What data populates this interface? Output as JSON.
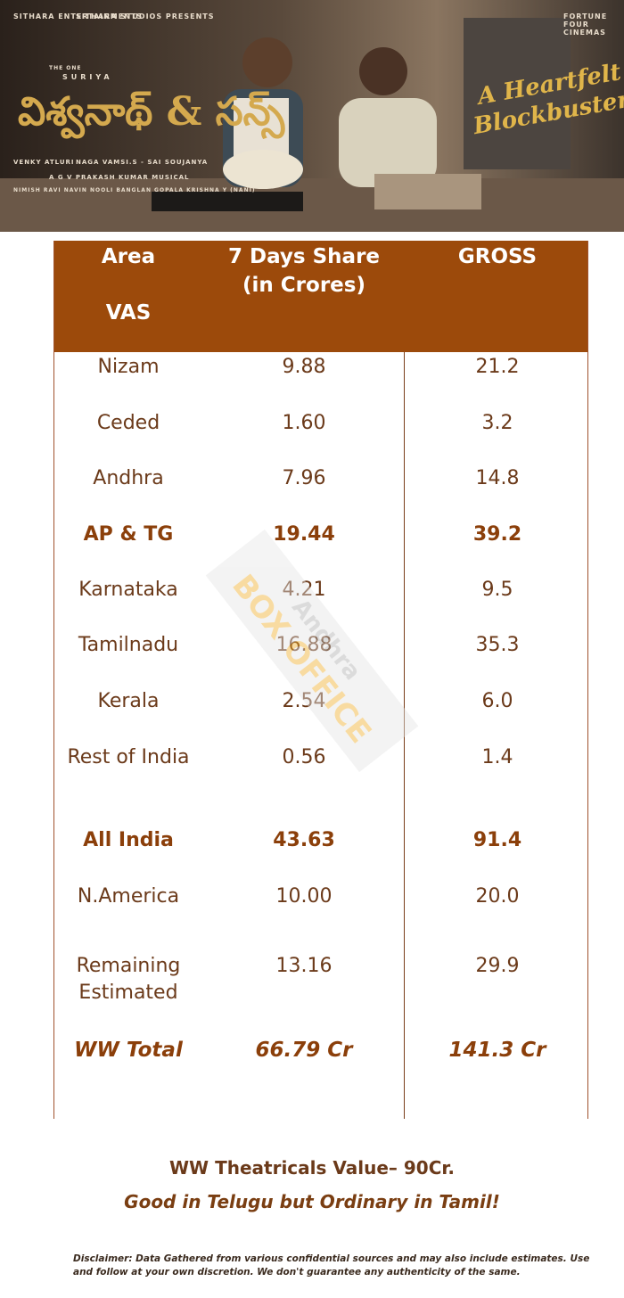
{
  "banner": {
    "logo_left": "SITHARA ENTERTAINMENTS",
    "logo_mid": "SITHARA STUDIOS PRESENTS",
    "logo_right": "FORTUNE FOUR CINEMAS",
    "star_prefix": "THE ONE",
    "star": "SURIYA",
    "title": "విశ్వనాథ్ & సన్స్",
    "credit_1": "VENKY ATLURI",
    "credit_2": "NAGA VAMSI.S - SAI SOUJANYA",
    "credit_3": "A G V PRAKASH KUMAR MUSICAL",
    "credit_4": "NIMISH RAVI   NAVIN NOOLI   BANGLAN   GOPALA KRISHNA Y (NANI)",
    "tagline_1": "A Heartfelt",
    "tagline_2": "Blockbuster"
  },
  "table": {
    "header": {
      "area": "Area",
      "vas": "VAS",
      "share": "7 Days Share (in Crores)",
      "gross": "GROSS"
    },
    "rows": [
      [
        "Nizam",
        "9.88",
        "21.2"
      ],
      [
        "Ceded",
        "1.60",
        "3.2"
      ],
      [
        "Andhra",
        "7.96",
        "14.8"
      ],
      [
        "AP & TG",
        "19.44",
        "39.2"
      ],
      [
        "Karnataka",
        "4.21",
        "9.5"
      ],
      [
        "Tamilnadu",
        "16.88",
        "35.3"
      ],
      [
        "Kerala",
        "2.54",
        "6.0"
      ],
      [
        "Rest of India",
        "0.56",
        "1.4"
      ],
      [
        "All India",
        "43.63",
        "91.4"
      ],
      [
        "N.America",
        "10.00",
        "20.0"
      ],
      [
        "Remaining Estimated",
        "13.16",
        "29.9"
      ],
      [
        "WW Total",
        "66.79 Cr",
        "141.3 Cr"
      ]
    ]
  },
  "watermark": {
    "line_1": "Andhra",
    "line_2": "BOX OFFICE"
  },
  "footer": {
    "value": "WW Theatricals Value– 90Cr.",
    "verdict": "Good in Telugu but Ordinary in Tamil!",
    "disclaimer": "Disclaimer:  Data Gathered from various confidential sources and may also include estimates. Use and follow at your own discretion.  We don't guarantee any authenticity of the same."
  }
}
